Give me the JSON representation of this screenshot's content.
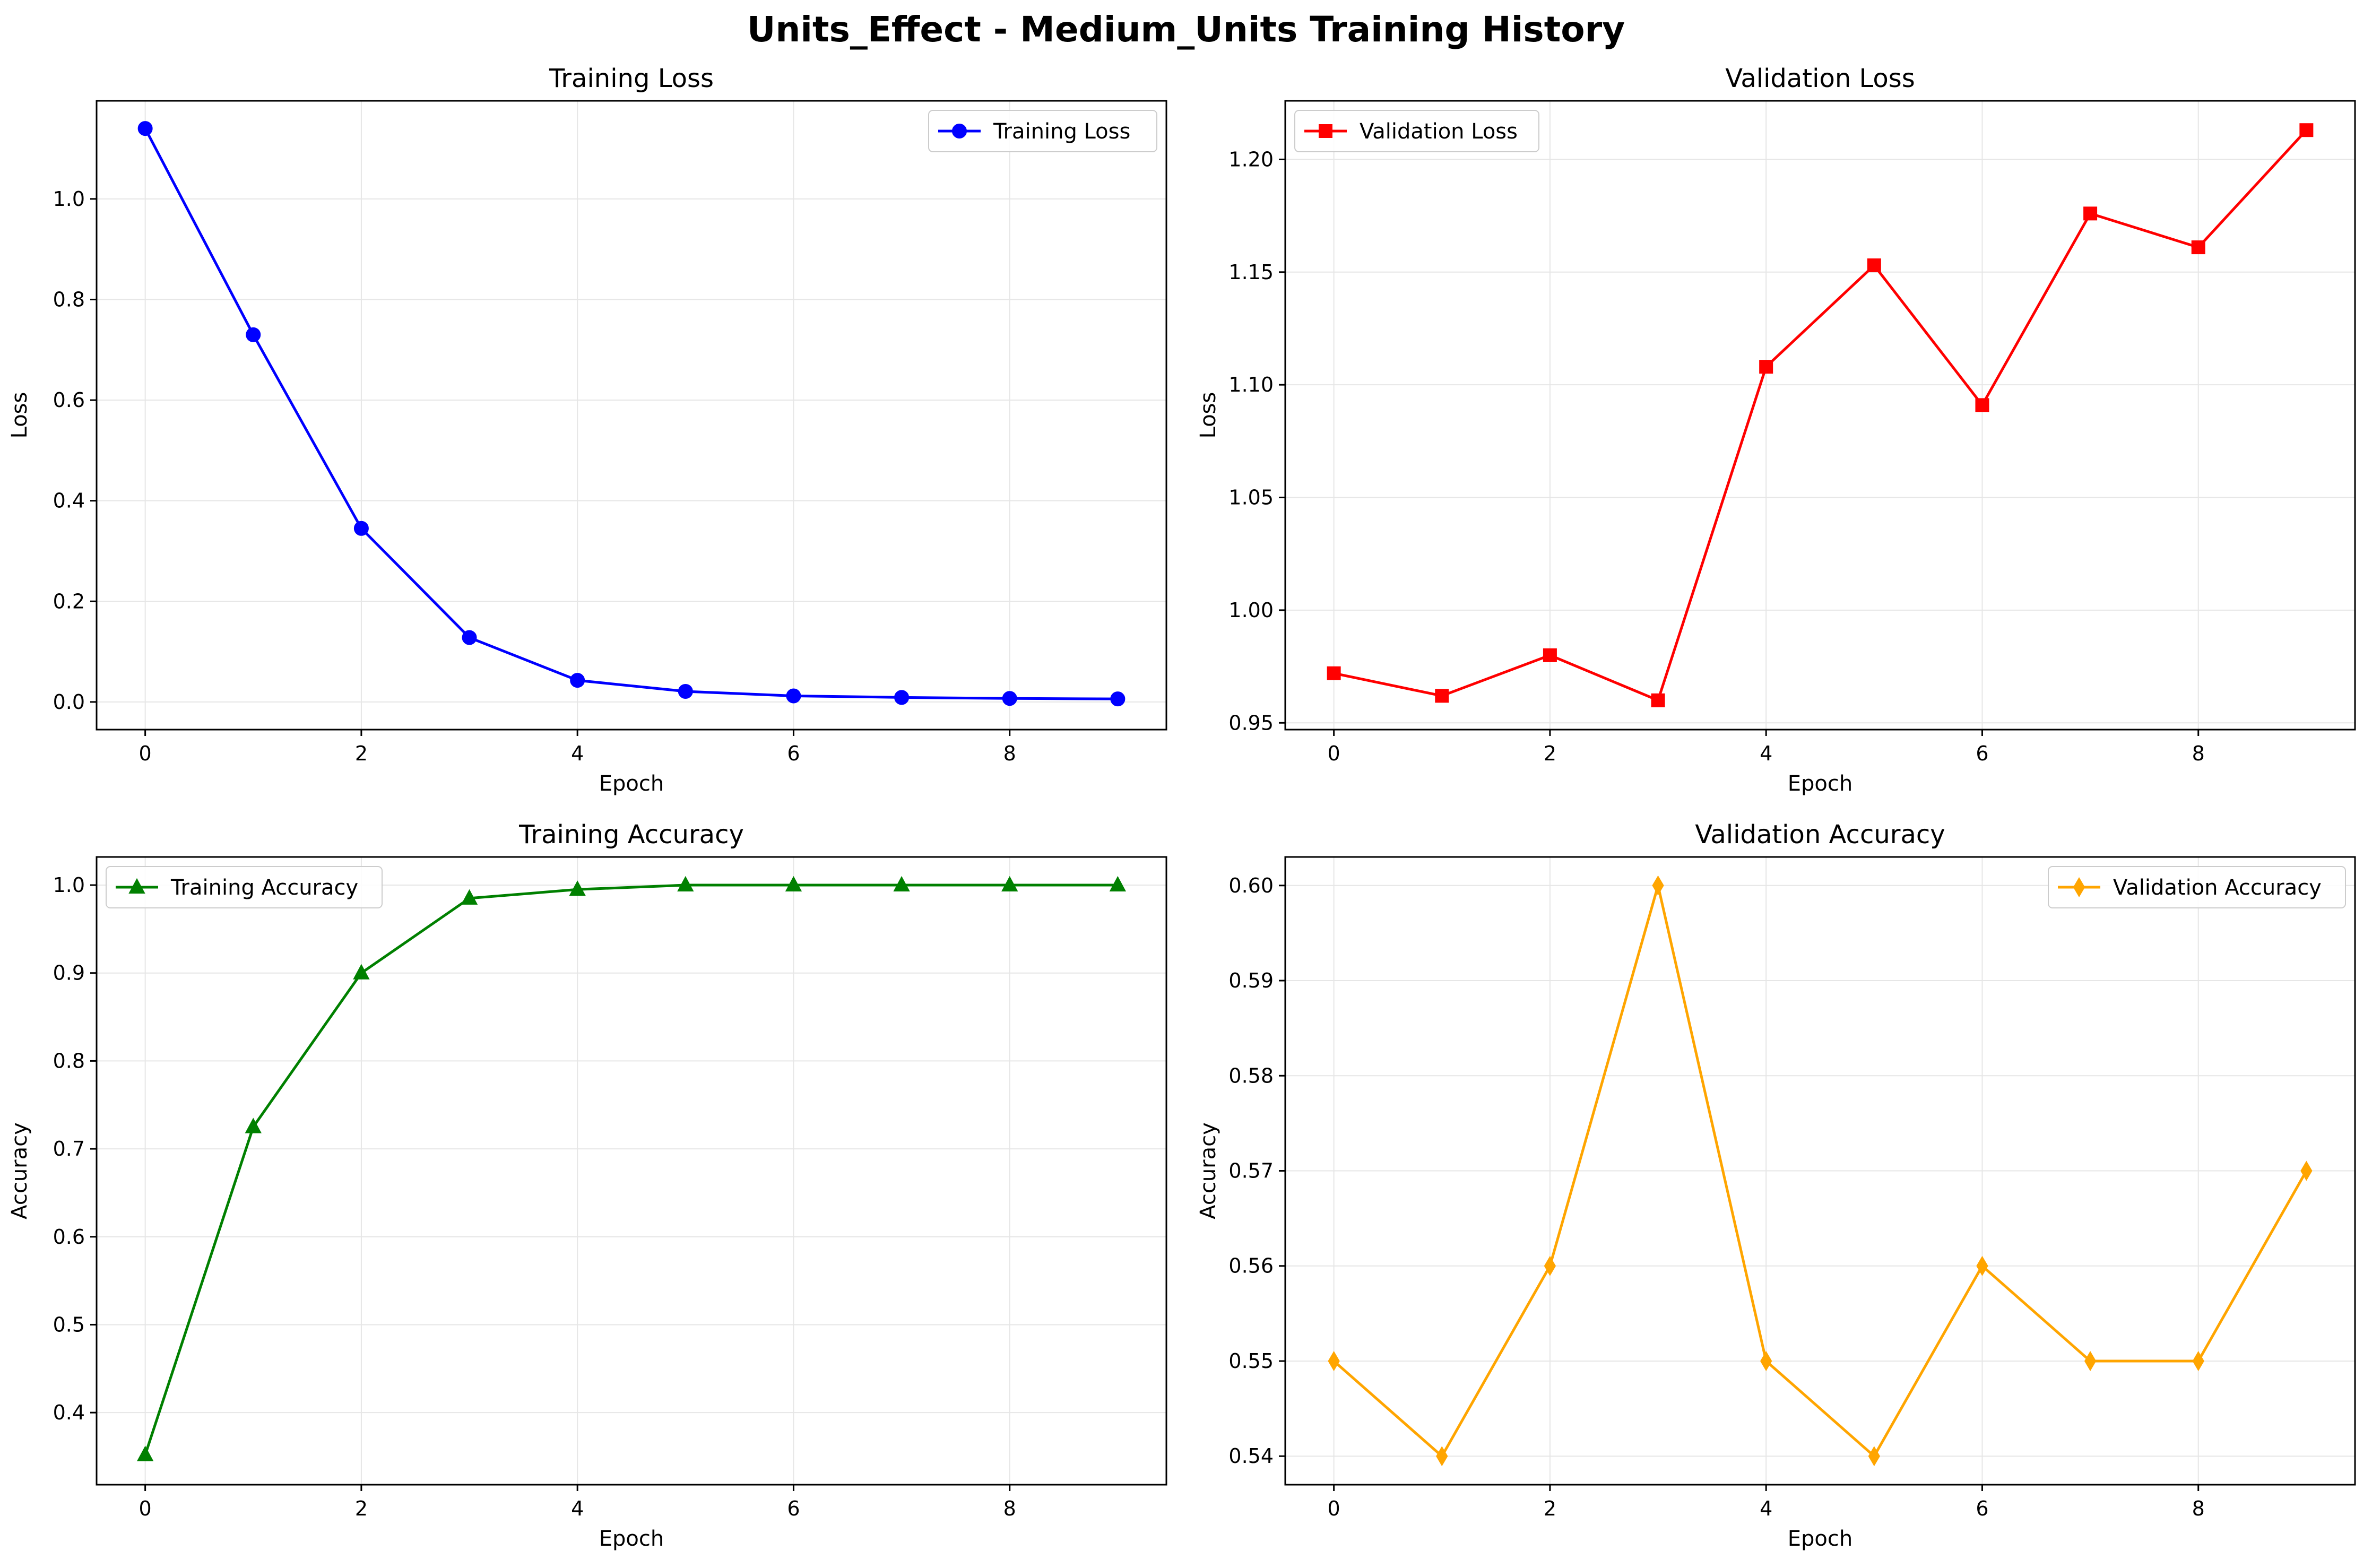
{
  "figure": {
    "title": "Units_Effect - Medium_Units Training History"
  },
  "chart_data": [
    {
      "type": "line",
      "title": "Training Loss",
      "xlabel": "Epoch",
      "ylabel": "Loss",
      "xlim": [
        -0.45,
        9.45
      ],
      "ylim": [
        -0.055,
        1.195
      ],
      "xticks": [
        0,
        2,
        4,
        6,
        8
      ],
      "yticks": [
        0.0,
        0.2,
        0.4,
        0.6,
        0.8,
        1.0
      ],
      "ytick_labels": [
        "0.0",
        "0.2",
        "0.4",
        "0.6",
        "0.8",
        "1.0"
      ],
      "grid": true,
      "legend_position": "top-right",
      "series": [
        {
          "name": "Training Loss",
          "color": "#0000ff",
          "marker": "circle",
          "x": [
            0,
            1,
            2,
            3,
            4,
            5,
            6,
            7,
            8,
            9
          ],
          "y": [
            1.14,
            0.73,
            0.345,
            0.128,
            0.043,
            0.021,
            0.012,
            0.009,
            0.007,
            0.006
          ]
        }
      ]
    },
    {
      "type": "line",
      "title": "Validation Loss",
      "xlabel": "Epoch",
      "ylabel": "Loss",
      "xlim": [
        -0.45,
        9.45
      ],
      "ylim": [
        0.947,
        1.226
      ],
      "xticks": [
        0,
        2,
        4,
        6,
        8
      ],
      "yticks": [
        0.95,
        1.0,
        1.05,
        1.1,
        1.15,
        1.2
      ],
      "ytick_labels": [
        "0.95",
        "1.00",
        "1.05",
        "1.10",
        "1.15",
        "1.20"
      ],
      "grid": true,
      "legend_position": "top-left",
      "series": [
        {
          "name": "Validation Loss",
          "color": "#ff0000",
          "marker": "square",
          "x": [
            0,
            1,
            2,
            3,
            4,
            5,
            6,
            7,
            8,
            9
          ],
          "y": [
            0.972,
            0.962,
            0.98,
            0.96,
            1.108,
            1.153,
            1.091,
            1.176,
            1.161,
            1.213
          ]
        }
      ]
    },
    {
      "type": "line",
      "title": "Training Accuracy",
      "xlabel": "Epoch",
      "ylabel": "Accuracy",
      "xlim": [
        -0.45,
        9.45
      ],
      "ylim": [
        0.318,
        1.032
      ],
      "xticks": [
        0,
        2,
        4,
        6,
        8
      ],
      "yticks": [
        0.4,
        0.5,
        0.6,
        0.7,
        0.8,
        0.9,
        1.0
      ],
      "ytick_labels": [
        "0.4",
        "0.5",
        "0.6",
        "0.7",
        "0.8",
        "0.9",
        "1.0"
      ],
      "grid": true,
      "legend_position": "top-left",
      "series": [
        {
          "name": "Training Accuracy",
          "color": "#008000",
          "marker": "triangle",
          "x": [
            0,
            1,
            2,
            3,
            4,
            5,
            6,
            7,
            8,
            9
          ],
          "y": [
            0.352,
            0.725,
            0.9,
            0.985,
            0.995,
            1.0,
            1.0,
            1.0,
            1.0,
            1.0
          ]
        }
      ]
    },
    {
      "type": "line",
      "title": "Validation Accuracy",
      "xlabel": "Epoch",
      "ylabel": "Accuracy",
      "xlim": [
        -0.45,
        9.45
      ],
      "ylim": [
        0.537,
        0.603
      ],
      "xticks": [
        0,
        2,
        4,
        6,
        8
      ],
      "yticks": [
        0.54,
        0.55,
        0.56,
        0.57,
        0.58,
        0.59,
        0.6
      ],
      "ytick_labels": [
        "0.54",
        "0.55",
        "0.56",
        "0.57",
        "0.58",
        "0.59",
        "0.60"
      ],
      "grid": true,
      "legend_position": "top-right",
      "series": [
        {
          "name": "Validation Accuracy",
          "color": "#ffa500",
          "marker": "diamond",
          "x": [
            0,
            1,
            2,
            3,
            4,
            5,
            6,
            7,
            8,
            9
          ],
          "y": [
            0.55,
            0.54,
            0.56,
            0.6,
            0.55,
            0.54,
            0.56,
            0.55,
            0.55,
            0.57
          ]
        }
      ]
    }
  ]
}
